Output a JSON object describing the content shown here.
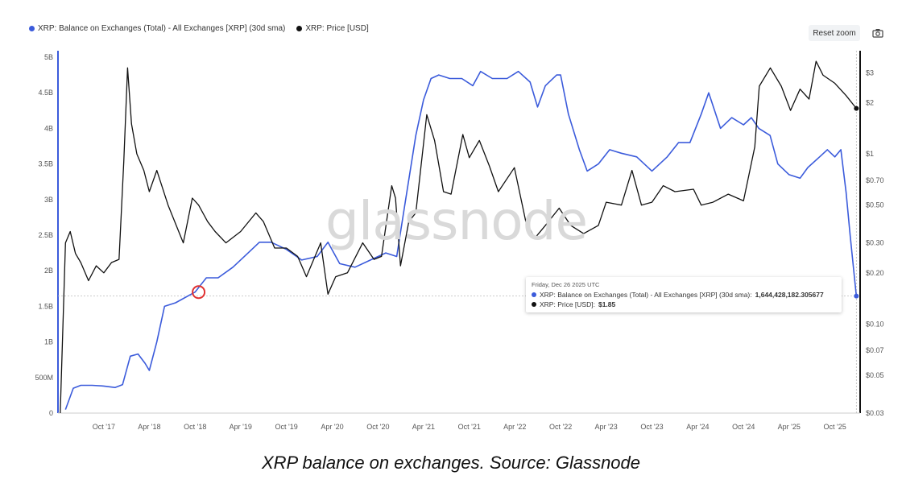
{
  "legend": {
    "series_balance": "XRP: Balance on Exchanges (Total) - All Exchanges [XRP] (30d sma)",
    "series_price": "XRP: Price [USD]"
  },
  "toolbar": {
    "reset_zoom": "Reset zoom",
    "camera_icon": "camera-icon"
  },
  "watermark": "glassnode",
  "tooltip": {
    "date": "Friday, Dec 26 2025 UTC",
    "balance_label": "XRP: Balance on Exchanges (Total) - All Exchanges [XRP] (30d sma):",
    "balance_value": "1,644,428,182.305677",
    "price_label": "XRP: Price [USD]:",
    "price_value": "$1.85"
  },
  "caption": "XRP balance on exchanges. Source: Glassnode",
  "colors": {
    "balance": "#3b5bdb",
    "price": "#111111",
    "annotation_circle": "#e03131"
  },
  "chart_data": {
    "type": "line",
    "x_tick_labels": [
      "Oct '17",
      "Apr '18",
      "Oct '18",
      "Apr '19",
      "Oct '19",
      "Apr '20",
      "Oct '20",
      "Apr '21",
      "Oct '21",
      "Apr '22",
      "Oct '22",
      "Apr '23",
      "Oct '23",
      "Apr '24",
      "Oct '24",
      "Apr '25",
      "Oct '25"
    ],
    "y_left_tick_labels": [
      "0",
      "500M",
      "1B",
      "1.5B",
      "2B",
      "2.5B",
      "3B",
      "3.5B",
      "4B",
      "4.5B",
      "5B"
    ],
    "y_left_range": [
      0,
      5000000000
    ],
    "y_right_tick_labels": [
      "$0.03",
      "$0.05",
      "$0.07",
      "$0.10",
      "$0.20",
      "$0.30",
      "$0.50",
      "$0.70",
      "$1",
      "$2",
      "$3"
    ],
    "y_right_values": [
      0.03,
      0.05,
      0.07,
      0.1,
      0.2,
      0.3,
      0.5,
      0.7,
      1,
      2,
      3
    ],
    "y_right_scale": "log",
    "y_right_range": [
      0.03,
      3.7
    ],
    "x_range": [
      "2017-04-01",
      "2026-01-10"
    ],
    "grid": false,
    "legend_position": "top-left",
    "series": [
      {
        "name": "XRP: Balance on Exchanges (Total) - All Exchanges [XRP] (30d sma)",
        "axis": "left",
        "points": [
          [
            "2017-05-01",
            50000000
          ],
          [
            "2017-06-01",
            350000000
          ],
          [
            "2017-07-01",
            390000000
          ],
          [
            "2017-08-15",
            390000000
          ],
          [
            "2017-10-01",
            380000000
          ],
          [
            "2017-11-15",
            360000000
          ],
          [
            "2017-12-15",
            400000000
          ],
          [
            "2018-01-15",
            800000000
          ],
          [
            "2018-02-15",
            830000000
          ],
          [
            "2018-03-15",
            700000000
          ],
          [
            "2018-04-01",
            600000000
          ],
          [
            "2018-05-01",
            1000000000
          ],
          [
            "2018-06-01",
            1500000000
          ],
          [
            "2018-07-15",
            1550000000
          ],
          [
            "2018-10-01",
            1700000000
          ],
          [
            "2018-11-15",
            1900000000
          ],
          [
            "2019-01-01",
            1900000000
          ],
          [
            "2019-03-01",
            2050000000
          ],
          [
            "2019-05-01",
            2250000000
          ],
          [
            "2019-06-15",
            2400000000
          ],
          [
            "2019-08-01",
            2400000000
          ],
          [
            "2019-10-01",
            2300000000
          ],
          [
            "2019-12-01",
            2150000000
          ],
          [
            "2020-02-01",
            2200000000
          ],
          [
            "2020-03-15",
            2400000000
          ],
          [
            "2020-05-01",
            2100000000
          ],
          [
            "2020-07-01",
            2050000000
          ],
          [
            "2020-09-01",
            2150000000
          ],
          [
            "2020-11-01",
            2250000000
          ],
          [
            "2020-12-15",
            2200000000
          ],
          [
            "2021-01-15",
            2900000000
          ],
          [
            "2021-03-01",
            3900000000
          ],
          [
            "2021-04-01",
            4400000000
          ],
          [
            "2021-05-01",
            4700000000
          ],
          [
            "2021-06-01",
            4750000000
          ],
          [
            "2021-07-15",
            4700000000
          ],
          [
            "2021-09-01",
            4700000000
          ],
          [
            "2021-10-15",
            4600000000
          ],
          [
            "2021-11-15",
            4800000000
          ],
          [
            "2022-01-01",
            4700000000
          ],
          [
            "2022-03-01",
            4700000000
          ],
          [
            "2022-04-15",
            4800000000
          ],
          [
            "2022-06-01",
            4650000000
          ],
          [
            "2022-07-01",
            4300000000
          ],
          [
            "2022-08-01",
            4600000000
          ],
          [
            "2022-09-15",
            4750000000
          ],
          [
            "2022-10-01",
            4750000000
          ],
          [
            "2022-11-01",
            4200000000
          ],
          [
            "2022-12-15",
            3700000000
          ],
          [
            "2023-01-15",
            3400000000
          ],
          [
            "2023-03-01",
            3500000000
          ],
          [
            "2023-04-15",
            3700000000
          ],
          [
            "2023-06-01",
            3650000000
          ],
          [
            "2023-08-01",
            3600000000
          ],
          [
            "2023-10-01",
            3400000000
          ],
          [
            "2023-12-01",
            3600000000
          ],
          [
            "2024-01-15",
            3800000000
          ],
          [
            "2024-03-01",
            3800000000
          ],
          [
            "2024-04-15",
            4200000000
          ],
          [
            "2024-05-15",
            4500000000
          ],
          [
            "2024-07-01",
            4000000000
          ],
          [
            "2024-08-15",
            4150000000
          ],
          [
            "2024-10-01",
            4050000000
          ],
          [
            "2024-11-01",
            4150000000
          ],
          [
            "2024-12-01",
            4000000000
          ],
          [
            "2025-01-15",
            3900000000
          ],
          [
            "2025-02-15",
            3500000000
          ],
          [
            "2025-04-01",
            3350000000
          ],
          [
            "2025-05-15",
            3300000000
          ],
          [
            "2025-06-15",
            3450000000
          ],
          [
            "2025-08-01",
            3600000000
          ],
          [
            "2025-09-01",
            3700000000
          ],
          [
            "2025-10-01",
            3600000000
          ],
          [
            "2025-10-25",
            3700000000
          ],
          [
            "2025-11-15",
            3100000000
          ],
          [
            "2025-12-01",
            2500000000
          ],
          [
            "2025-12-26",
            1644428182
          ]
        ]
      },
      {
        "name": "XRP: Price [USD]",
        "axis": "right",
        "points": [
          [
            "2017-04-10",
            0.03
          ],
          [
            "2017-05-01",
            0.3
          ],
          [
            "2017-05-20",
            0.35
          ],
          [
            "2017-06-10",
            0.26
          ],
          [
            "2017-07-01",
            0.23
          ],
          [
            "2017-08-01",
            0.18
          ],
          [
            "2017-09-01",
            0.22
          ],
          [
            "2017-10-01",
            0.2
          ],
          [
            "2017-11-01",
            0.23
          ],
          [
            "2017-12-01",
            0.24
          ],
          [
            "2017-12-20",
            0.9
          ],
          [
            "2018-01-04",
            3.2
          ],
          [
            "2018-01-20",
            1.5
          ],
          [
            "2018-02-10",
            1.0
          ],
          [
            "2018-03-10",
            0.8
          ],
          [
            "2018-04-01",
            0.6
          ],
          [
            "2018-05-01",
            0.8
          ],
          [
            "2018-06-15",
            0.5
          ],
          [
            "2018-08-15",
            0.3
          ],
          [
            "2018-09-20",
            0.55
          ],
          [
            "2018-10-15",
            0.5
          ],
          [
            "2018-11-20",
            0.4
          ],
          [
            "2018-12-20",
            0.35
          ],
          [
            "2019-02-01",
            0.3
          ],
          [
            "2019-04-01",
            0.35
          ],
          [
            "2019-06-01",
            0.45
          ],
          [
            "2019-07-01",
            0.4
          ],
          [
            "2019-08-15",
            0.28
          ],
          [
            "2019-10-01",
            0.28
          ],
          [
            "2019-11-15",
            0.25
          ],
          [
            "2019-12-20",
            0.19
          ],
          [
            "2020-02-15",
            0.3
          ],
          [
            "2020-03-15",
            0.15
          ],
          [
            "2020-04-15",
            0.19
          ],
          [
            "2020-06-01",
            0.2
          ],
          [
            "2020-08-01",
            0.3
          ],
          [
            "2020-09-15",
            0.24
          ],
          [
            "2020-10-15",
            0.25
          ],
          [
            "2020-11-25",
            0.65
          ],
          [
            "2020-12-10",
            0.55
          ],
          [
            "2020-12-30",
            0.22
          ],
          [
            "2021-02-01",
            0.4
          ],
          [
            "2021-03-01",
            0.45
          ],
          [
            "2021-04-14",
            1.7
          ],
          [
            "2021-05-15",
            1.2
          ],
          [
            "2021-06-20",
            0.6
          ],
          [
            "2021-07-20",
            0.58
          ],
          [
            "2021-09-05",
            1.3
          ],
          [
            "2021-10-01",
            0.95
          ],
          [
            "2021-11-10",
            1.2
          ],
          [
            "2021-12-20",
            0.85
          ],
          [
            "2022-01-25",
            0.6
          ],
          [
            "2022-03-30",
            0.83
          ],
          [
            "2022-05-15",
            0.4
          ],
          [
            "2022-06-20",
            0.32
          ],
          [
            "2022-08-01",
            0.38
          ],
          [
            "2022-09-25",
            0.48
          ],
          [
            "2022-11-10",
            0.38
          ],
          [
            "2023-01-01",
            0.34
          ],
          [
            "2023-03-01",
            0.38
          ],
          [
            "2023-04-01",
            0.52
          ],
          [
            "2023-06-01",
            0.5
          ],
          [
            "2023-07-13",
            0.8
          ],
          [
            "2023-08-20",
            0.5
          ],
          [
            "2023-10-01",
            0.52
          ],
          [
            "2023-11-15",
            0.65
          ],
          [
            "2024-01-01",
            0.6
          ],
          [
            "2024-03-15",
            0.62
          ],
          [
            "2024-04-15",
            0.5
          ],
          [
            "2024-06-01",
            0.52
          ],
          [
            "2024-08-01",
            0.58
          ],
          [
            "2024-10-01",
            0.53
          ],
          [
            "2024-11-15",
            1.1
          ],
          [
            "2024-12-03",
            2.5
          ],
          [
            "2025-01-16",
            3.2
          ],
          [
            "2025-03-01",
            2.5
          ],
          [
            "2025-04-07",
            1.8
          ],
          [
            "2025-05-15",
            2.4
          ],
          [
            "2025-06-20",
            2.1
          ],
          [
            "2025-07-18",
            3.5
          ],
          [
            "2025-08-15",
            2.9
          ],
          [
            "2025-10-01",
            2.6
          ],
          [
            "2025-11-15",
            2.2
          ],
          [
            "2025-12-26",
            1.85
          ]
        ]
      }
    ],
    "annotation": {
      "type": "circle",
      "date": "2018-10-15",
      "value": 1700000000
    }
  }
}
